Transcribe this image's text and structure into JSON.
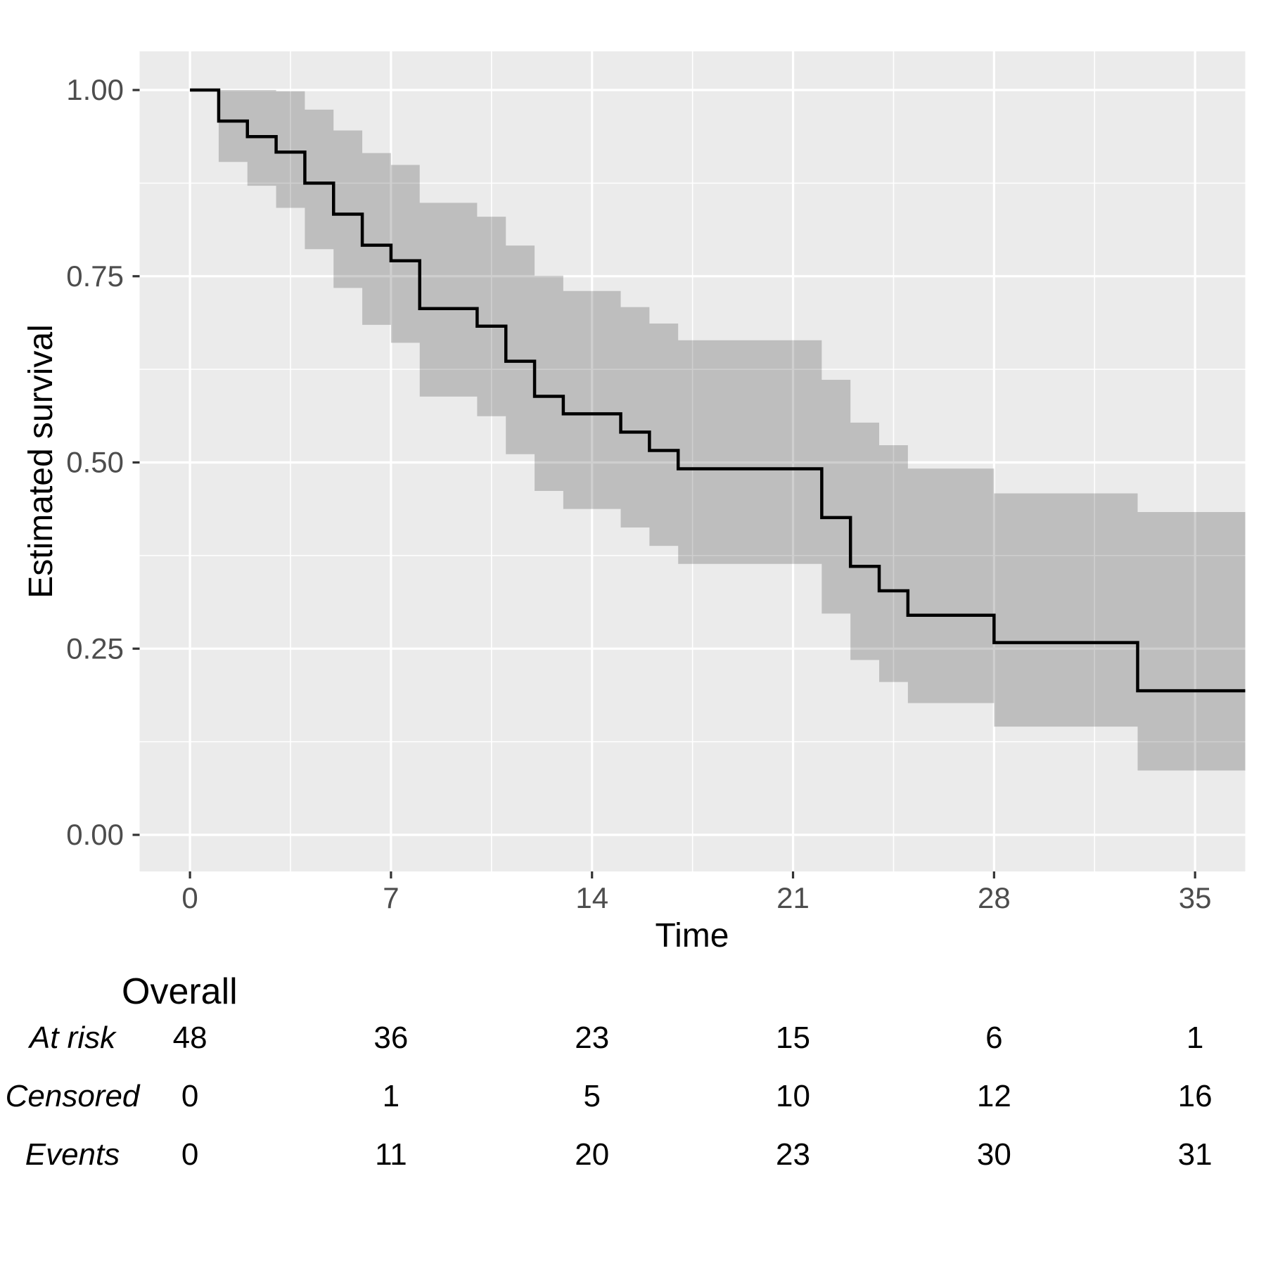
{
  "chart_data": {
    "type": "line",
    "subtype": "kaplan-meier-step",
    "title": "",
    "xlabel": "Time",
    "ylabel": "Estimated survival",
    "legend_position": "none",
    "grid": true,
    "xlim": [
      -1.75,
      36.75
    ],
    "ylim": [
      -0.05,
      1.05
    ],
    "x_ticks": [
      0,
      7,
      14,
      21,
      28,
      35
    ],
    "x_tick_labels": [
      "0",
      "7",
      "14",
      "21",
      "28",
      "35"
    ],
    "x_minor_ticks": [
      3.5,
      10.5,
      17.5,
      24.5,
      31.5
    ],
    "y_ticks": [
      0,
      0.25,
      0.5,
      0.75,
      1
    ],
    "y_tick_labels": [
      "0.00",
      "0.25",
      "0.50",
      "0.75",
      "1.00"
    ],
    "y_minor_ticks": [
      0.125,
      0.375,
      0.625,
      0.875
    ],
    "series": [
      {
        "name": "Overall",
        "t_end": 36.75,
        "steps": [
          {
            "t": 0,
            "s": 1.0,
            "l": 1.0,
            "u": 1.0
          },
          {
            "t": 1,
            "s": 0.9583,
            "l": 0.9034,
            "u": 1.0
          },
          {
            "t": 2,
            "s": 0.9375,
            "l": 0.8715,
            "u": 1.0
          },
          {
            "t": 3,
            "s": 0.9167,
            "l": 0.8418,
            "u": 0.9983
          },
          {
            "t": 4,
            "s": 0.875,
            "l": 0.7863,
            "u": 0.9737
          },
          {
            "t": 5,
            "s": 0.8333,
            "l": 0.7343,
            "u": 0.9457
          },
          {
            "t": 6,
            "s": 0.7917,
            "l": 0.6847,
            "u": 0.9154
          },
          {
            "t": 7,
            "s": 0.7708,
            "l": 0.6606,
            "u": 0.8994
          },
          {
            "t": 8,
            "s": 0.7066,
            "l": 0.5884,
            "u": 0.8486
          },
          {
            "t": 10,
            "s": 0.683,
            "l": 0.5621,
            "u": 0.8299
          },
          {
            "t": 11,
            "s": 0.6359,
            "l": 0.5111,
            "u": 0.7912
          },
          {
            "t": 12,
            "s": 0.5888,
            "l": 0.4617,
            "u": 0.7509
          },
          {
            "t": 13,
            "s": 0.5653,
            "l": 0.4376,
            "u": 0.7302
          },
          {
            "t": 15,
            "s": 0.5407,
            "l": 0.4126,
            "u": 0.7086
          },
          {
            "t": 16,
            "s": 0.5161,
            "l": 0.388,
            "u": 0.6865
          },
          {
            "t": 17,
            "s": 0.4915,
            "l": 0.3638,
            "u": 0.6641
          },
          {
            "t": 22,
            "s": 0.426,
            "l": 0.2971,
            "u": 0.6109
          },
          {
            "t": 23,
            "s": 0.3605,
            "l": 0.2348,
            "u": 0.5535
          },
          {
            "t": 24,
            "s": 0.3277,
            "l": 0.2053,
            "u": 0.5231
          },
          {
            "t": 25,
            "s": 0.2949,
            "l": 0.1769,
            "u": 0.4917
          },
          {
            "t": 28,
            "s": 0.2581,
            "l": 0.1453,
            "u": 0.4585
          },
          {
            "t": 33,
            "s": 0.1935,
            "l": 0.0864,
            "u": 0.4334
          }
        ]
      }
    ],
    "risk_table": {
      "title": "Overall",
      "times": [
        0,
        7,
        14,
        21,
        28,
        35
      ],
      "rows": [
        {
          "label": "At risk",
          "values": [
            "48",
            "36",
            "23",
            "15",
            "6",
            "1"
          ]
        },
        {
          "label": "Censored",
          "values": [
            "0",
            "1",
            "5",
            "10",
            "12",
            "16"
          ]
        },
        {
          "label": "Events",
          "values": [
            "0",
            "11",
            "20",
            "23",
            "30",
            "31"
          ]
        }
      ]
    },
    "colors": {
      "panel_background": "#EBEBEB",
      "gridline": "#FFFFFF",
      "confidence_band": "rgba(0,0,0,0.19)",
      "step_line": "#000000",
      "tick_mark": "#333333",
      "tick_text": "#4D4D4D",
      "title_text": "#000000"
    }
  }
}
